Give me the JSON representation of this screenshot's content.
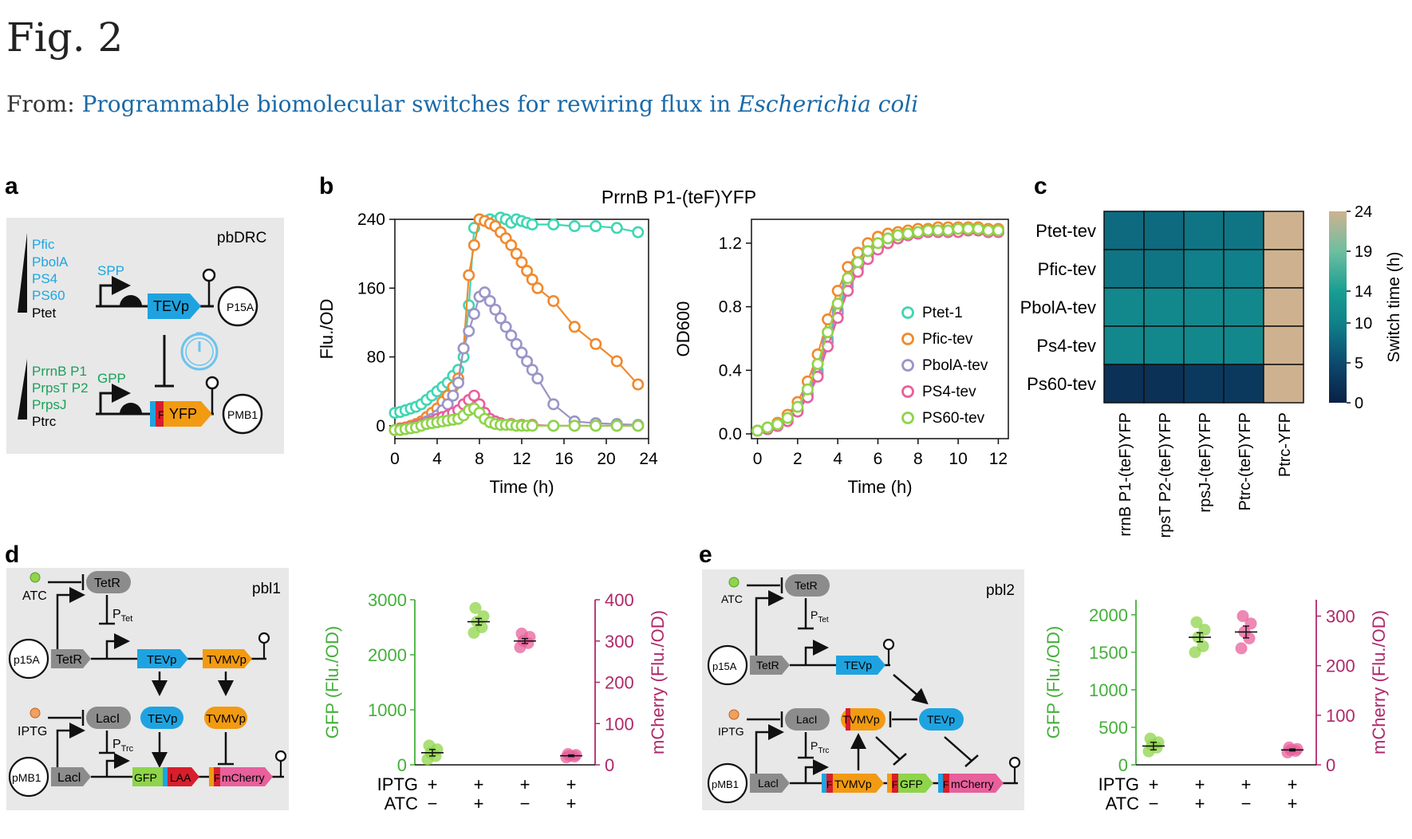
{
  "header": {
    "fig_label": "Fig. 2",
    "from_prefix": "From: ",
    "link_text_main": "Programmable biomolecular switches for rewiring flux in ",
    "link_text_species": "Escherichia coli"
  },
  "panels": {
    "a": {
      "letter": "a",
      "construct": "pbDRC",
      "top_promoters": [
        "Pfic",
        "PbolA",
        "PS4",
        "PS60",
        "Ptet"
      ],
      "spp": "SPP",
      "tevp": "TEVp",
      "p15a": "P15A",
      "bottom_promoters": [
        "PrrnB P1",
        "PrpsT P2",
        "PrpsJ",
        "Ptrc"
      ],
      "gpp": "GPP",
      "f": "F",
      "yfp": "YFP",
      "pmb1": "PMB1"
    },
    "b": {
      "letter": "b",
      "title": "PrrnB P1-(teF)YFP"
    },
    "c": {
      "letter": "c"
    },
    "d": {
      "letter": "d",
      "construct": "pbl1",
      "atc": "ATC",
      "iptg": "IPTG",
      "tetr": "TetR",
      "laci": "LacI",
      "laci2": "Lacl",
      "ptet": "P",
      "ptet_sub": "Tet",
      "ptrc": "P",
      "ptrc_sub": "Trc",
      "p15a": "p15A",
      "pmb1": "pMB1",
      "tevp": "TEVp",
      "tvmvp": "TVMVp",
      "gfp": "GFP",
      "laa": "LAA",
      "f": "F",
      "mcherry": "mCherry"
    },
    "e": {
      "letter": "e",
      "construct": "pbl2",
      "atc": "ATC",
      "iptg": "IPTG",
      "tetr": "TetR",
      "laci": "LacI",
      "laci2": "Lacl",
      "ptet": "P",
      "ptet_sub": "Tet",
      "ptrc": "P",
      "ptrc_sub": "Trc",
      "p15a": "p15A",
      "pmb1": "pMB1",
      "tevp": "TEVp",
      "tvmvp": "TVMVp",
      "gfp": "GFP",
      "f": "F",
      "mcherry": "mCherry"
    }
  },
  "colors": {
    "ptet1": "#3fd6b4",
    "pfic": "#f08a2e",
    "pbola": "#9a95c8",
    "ps4": "#e8609c",
    "ps60": "#8fd44a",
    "gfp": "#44b03a",
    "mcherry": "#b0286a",
    "tevp": "#1fa3e0",
    "tvmvp": "#f29a12",
    "box": "#e8e8e8"
  },
  "chart_data": [
    {
      "id": "b-left",
      "type": "line",
      "title": "",
      "xlabel": "Time (h)",
      "ylabel": "Flu./OD",
      "xlim": [
        0,
        24
      ],
      "ylim": [
        -15,
        240
      ],
      "xticks": [
        0,
        4,
        8,
        12,
        16,
        20,
        24
      ],
      "yticks": [
        0,
        80,
        160,
        240
      ],
      "series": [
        {
          "name": "Ptet-1",
          "color": "#3fd6b4",
          "x": [
            0,
            0.5,
            1,
            1.5,
            2,
            2.5,
            3,
            3.5,
            4,
            4.5,
            5,
            5.5,
            6,
            6.5,
            7,
            7.5,
            8,
            9,
            9.5,
            10,
            10.5,
            11,
            11.5,
            12,
            12.5,
            13,
            15,
            17,
            19,
            21,
            23
          ],
          "y": [
            15,
            16,
            18,
            20,
            22,
            25,
            30,
            35,
            40,
            45,
            50,
            58,
            65,
            80,
            140,
            230,
            240,
            240,
            238,
            242,
            240,
            236,
            240,
            238,
            236,
            234,
            234,
            232,
            232,
            230,
            225
          ]
        },
        {
          "name": "Pfic-tev",
          "color": "#f08a2e",
          "x": [
            0,
            0.5,
            1,
            1.5,
            2,
            2.5,
            3,
            3.5,
            4,
            4.5,
            5,
            5.5,
            6,
            6.5,
            7,
            7.5,
            8,
            8.5,
            9,
            9.5,
            10,
            10.5,
            11,
            11.5,
            12,
            12.5,
            13,
            13.5,
            15,
            17,
            19,
            21,
            23
          ],
          "y": [
            -5,
            -3,
            -2,
            0,
            2,
            5,
            10,
            15,
            20,
            28,
            35,
            45,
            55,
            90,
            175,
            210,
            240,
            238,
            235,
            232,
            225,
            218,
            210,
            200,
            190,
            180,
            170,
            160,
            145,
            115,
            95,
            75,
            48
          ]
        },
        {
          "name": "PbolA-tev",
          "color": "#9a95c8",
          "x": [
            0,
            0.5,
            1,
            1.5,
            2,
            2.5,
            3,
            3.5,
            4,
            4.5,
            5,
            5.5,
            6,
            6.5,
            7,
            7.5,
            8,
            8.5,
            9,
            9.5,
            10,
            10.5,
            11,
            11.5,
            12,
            12.5,
            13,
            13.5,
            15,
            17,
            19,
            21,
            23
          ],
          "y": [
            -5,
            -4,
            -3,
            -2,
            0,
            2,
            5,
            8,
            12,
            18,
            25,
            35,
            50,
            90,
            110,
            130,
            150,
            155,
            145,
            135,
            125,
            115,
            105,
            95,
            85,
            75,
            65,
            55,
            25,
            5,
            3,
            2,
            1
          ]
        },
        {
          "name": "PS4-tev",
          "color": "#e8609c",
          "x": [
            0,
            0.5,
            1,
            1.5,
            2,
            2.5,
            3,
            3.5,
            4,
            4.5,
            5,
            5.5,
            6,
            6.5,
            7,
            7.5,
            8,
            8.5,
            9,
            9.5,
            10,
            11,
            12,
            13,
            15,
            17,
            19,
            21,
            23
          ],
          "y": [
            -5,
            -4,
            -3,
            -2,
            0,
            2,
            3,
            5,
            8,
            10,
            12,
            15,
            18,
            25,
            30,
            35,
            25,
            15,
            8,
            5,
            3,
            2,
            1,
            1,
            0,
            0,
            0,
            0,
            0
          ]
        },
        {
          "name": "PS60-tev",
          "color": "#8fd44a",
          "x": [
            0,
            0.5,
            1,
            1.5,
            2,
            2.5,
            3,
            3.5,
            4,
            4.5,
            5,
            5.5,
            6,
            6.5,
            7,
            7.5,
            8,
            8.5,
            9,
            9.5,
            10,
            10.5,
            11,
            11.5,
            12,
            12.5,
            13,
            15,
            17,
            19,
            21,
            23
          ],
          "y": [
            -5,
            -5,
            -4,
            -3,
            -2,
            0,
            2,
            3,
            4,
            5,
            6,
            7,
            8,
            12,
            18,
            20,
            15,
            8,
            4,
            2,
            1,
            1,
            1,
            0,
            0,
            0,
            0,
            0,
            0,
            0,
            0,
            0
          ]
        }
      ]
    },
    {
      "id": "b-right",
      "type": "line",
      "title": "",
      "xlabel": "Time (h)",
      "ylabel": "OD600",
      "xlim": [
        -0.3,
        12.5
      ],
      "ylim": [
        -0.03,
        1.35
      ],
      "xticks": [
        0,
        2,
        4,
        6,
        8,
        10,
        12
      ],
      "yticks": [
        0.0,
        0.4,
        0.8,
        1.2
      ],
      "legend": "right",
      "series": [
        {
          "name": "Ptet-1",
          "color": "#3fd6b4",
          "x": [
            0,
            0.5,
            1,
            1.5,
            2,
            2.5,
            3,
            3.5,
            4,
            4.5,
            5,
            5.5,
            6,
            6.5,
            7,
            7.5,
            8,
            8.5,
            9,
            9.5,
            10,
            10.5,
            11,
            11.5,
            12
          ],
          "y": [
            0.02,
            0.03,
            0.05,
            0.09,
            0.15,
            0.25,
            0.4,
            0.6,
            0.78,
            0.95,
            1.05,
            1.13,
            1.18,
            1.21,
            1.24,
            1.25,
            1.26,
            1.27,
            1.27,
            1.28,
            1.28,
            1.28,
            1.28,
            1.27,
            1.27
          ]
        },
        {
          "name": "Pfic-tev",
          "color": "#f08a2e",
          "x": [
            0,
            0.5,
            1,
            1.5,
            2,
            2.5,
            3,
            3.5,
            4,
            4.5,
            5,
            5.5,
            6,
            6.5,
            7,
            7.5,
            8,
            8.5,
            9,
            9.5,
            10,
            10.5,
            11,
            11.5,
            12
          ],
          "y": [
            0.02,
            0.04,
            0.07,
            0.12,
            0.2,
            0.33,
            0.5,
            0.72,
            0.9,
            1.05,
            1.14,
            1.2,
            1.24,
            1.26,
            1.27,
            1.28,
            1.29,
            1.29,
            1.3,
            1.3,
            1.3,
            1.3,
            1.3,
            1.29,
            1.29
          ]
        },
        {
          "name": "PbolA-tev",
          "color": "#9a95c8",
          "x": [
            0,
            0.5,
            1,
            1.5,
            2,
            2.5,
            3,
            3.5,
            4,
            4.5,
            5,
            5.5,
            6,
            6.5,
            7,
            7.5,
            8,
            8.5,
            9,
            9.5,
            10,
            10.5,
            11,
            11.5,
            12
          ],
          "y": [
            0.02,
            0.03,
            0.05,
            0.09,
            0.15,
            0.25,
            0.38,
            0.58,
            0.76,
            0.93,
            1.04,
            1.12,
            1.17,
            1.21,
            1.23,
            1.25,
            1.26,
            1.27,
            1.27,
            1.27,
            1.28,
            1.28,
            1.28,
            1.27,
            1.27
          ]
        },
        {
          "name": "PS4-tev",
          "color": "#e8609c",
          "x": [
            0,
            0.5,
            1,
            1.5,
            2,
            2.5,
            3,
            3.5,
            4,
            4.5,
            5,
            5.5,
            6,
            6.5,
            7,
            7.5,
            8,
            8.5,
            9,
            9.5,
            10,
            10.5,
            11,
            11.5,
            12
          ],
          "y": [
            0.02,
            0.03,
            0.05,
            0.08,
            0.14,
            0.23,
            0.36,
            0.55,
            0.73,
            0.9,
            1.02,
            1.1,
            1.16,
            1.2,
            1.23,
            1.25,
            1.26,
            1.27,
            1.27,
            1.27,
            1.27,
            1.28,
            1.28,
            1.27,
            1.27
          ]
        },
        {
          "name": "PS60-tev",
          "color": "#8fd44a",
          "x": [
            0,
            0.5,
            1,
            1.5,
            2,
            2.5,
            3,
            3.5,
            4,
            4.5,
            5,
            5.5,
            6,
            6.5,
            7,
            7.5,
            8,
            8.5,
            9,
            9.5,
            10,
            10.5,
            11,
            11.5,
            12
          ],
          "y": [
            0.02,
            0.04,
            0.06,
            0.1,
            0.17,
            0.28,
            0.44,
            0.64,
            0.82,
            0.98,
            1.08,
            1.15,
            1.2,
            1.23,
            1.25,
            1.26,
            1.27,
            1.28,
            1.28,
            1.28,
            1.29,
            1.29,
            1.29,
            1.28,
            1.28
          ]
        }
      ]
    },
    {
      "id": "c",
      "type": "heatmap",
      "title": "",
      "rows": [
        "Ptet-tev",
        "Pfic-tev",
        "PbolA-tev",
        "Ps4-tev",
        "Ps60-tev"
      ],
      "columns": [
        "rrnB P1-(teF)YFP",
        "rpsT P2-(teF)YFP",
        "rpsJ-(teF)YFP",
        "Ptrc-(teF)YFP",
        "Ptrc-YFP"
      ],
      "values": [
        [
          8,
          8,
          9,
          9,
          24
        ],
        [
          9,
          9,
          10,
          10,
          24
        ],
        [
          11,
          11,
          11,
          11,
          24
        ],
        [
          11,
          11,
          11,
          11,
          24
        ],
        [
          2,
          2,
          3,
          3,
          24
        ]
      ],
      "colorbar": {
        "label": "Switch time (h)",
        "ticks": [
          0,
          5,
          10,
          14,
          19,
          24
        ],
        "range": [
          0,
          24
        ]
      }
    },
    {
      "id": "d-plot",
      "type": "scatter",
      "title": "",
      "ylabel_left": "GFP (Flu./OD)",
      "ylabel_right": "mCherry (Flu./OD)",
      "ylim_left": [
        0,
        3000
      ],
      "yticks_left": [
        0,
        1000,
        2000,
        3000
      ],
      "ylim_right": [
        0,
        400
      ],
      "yticks_right": [
        0,
        100,
        200,
        300,
        400
      ],
      "conditions": [
        {
          "iptg": "+",
          "atc": "−"
        },
        {
          "iptg": "+",
          "atc": "+"
        },
        {
          "iptg": "+",
          "atc": "−"
        },
        {
          "iptg": "+",
          "atc": "+"
        }
      ],
      "row_labels": [
        "IPTG",
        "ATC"
      ],
      "groups": [
        {
          "axis": "left",
          "series": "GFP",
          "color": "#8fd44a",
          "mean": 220,
          "err": 60,
          "points": [
            100,
            160,
            220,
            280,
            350
          ]
        },
        {
          "axis": "left",
          "series": "GFP",
          "color": "#8fd44a",
          "mean": 2600,
          "err": 60,
          "points": [
            2400,
            2500,
            2600,
            2700,
            2850
          ]
        },
        {
          "axis": "right",
          "series": "mCherry",
          "color": "#e8609c",
          "mean": 300,
          "err": 6,
          "points": [
            285,
            295,
            300,
            310,
            318
          ]
        },
        {
          "axis": "right",
          "series": "mCherry",
          "color": "#e8609c",
          "mean": 22,
          "err": 2,
          "points": [
            18,
            20,
            22,
            24,
            26
          ]
        }
      ]
    },
    {
      "id": "e-plot",
      "type": "scatter",
      "title": "",
      "ylabel_left": "GFP (Flu./OD)",
      "ylabel_right": "mCherry (Flu./OD)",
      "ylim_left": [
        0,
        2200
      ],
      "yticks_left": [
        0,
        500,
        1000,
        1500,
        2000
      ],
      "ylim_right": [
        0,
        333
      ],
      "yticks_right": [
        0,
        100,
        200,
        300
      ],
      "conditions": [
        {
          "iptg": "+",
          "atc": "−"
        },
        {
          "iptg": "+",
          "atc": "+"
        },
        {
          "iptg": "+",
          "atc": "−"
        },
        {
          "iptg": "+",
          "atc": "+"
        }
      ],
      "row_labels": [
        "IPTG",
        "ATC"
      ],
      "groups": [
        {
          "axis": "left",
          "series": "GFP",
          "color": "#8fd44a",
          "mean": 250,
          "err": 50,
          "points": [
            180,
            230,
            260,
            300,
            350
          ]
        },
        {
          "axis": "left",
          "series": "GFP",
          "color": "#8fd44a",
          "mean": 1700,
          "err": 60,
          "points": [
            1500,
            1580,
            1700,
            1800,
            1900
          ]
        },
        {
          "axis": "right",
          "series": "mCherry",
          "color": "#e8609c",
          "mean": 268,
          "err": 12,
          "points": [
            235,
            255,
            268,
            285,
            300
          ]
        },
        {
          "axis": "right",
          "series": "mCherry",
          "color": "#e8609c",
          "mean": 30,
          "err": 2,
          "points": [
            25,
            28,
            30,
            32,
            35
          ]
        }
      ]
    }
  ]
}
